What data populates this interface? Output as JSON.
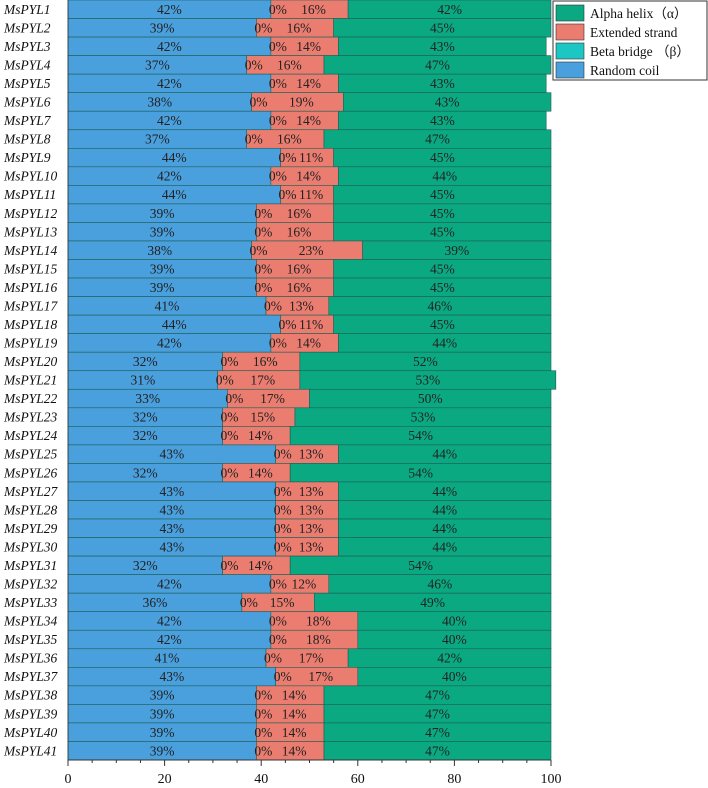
{
  "chart_data": {
    "type": "bar",
    "orientation": "horizontal",
    "stacked": true,
    "xlim": [
      0,
      100
    ],
    "xticks": [
      "0",
      "20",
      "40",
      "60",
      "80",
      "100"
    ],
    "legend_position": "top-right",
    "categories": [
      "MsPYL1",
      "MsPYL2",
      "MsPYL3",
      "MsPYL4",
      "MsPYL5",
      "MsPYL6",
      "MsPYL7",
      "MsPYL8",
      "MsPYL9",
      "MsPYL10",
      "MsPYL11",
      "MsPYL12",
      "MsPYL13",
      "MsPYL14",
      "MsPYL15",
      "MsPYL16",
      "MsPYL17",
      "MsPYL18",
      "MsPYL19",
      "MsPYL20",
      "MsPYL21",
      "MsPYL22",
      "MsPYL23",
      "MsPYL24",
      "MsPYL25",
      "MsPYL26",
      "MsPYL27",
      "MsPYL28",
      "MsPYL29",
      "MsPYL30",
      "MsPYL31",
      "MsPYL32",
      "MsPYL33",
      "MsPYL34",
      "MsPYL35",
      "MsPYL36",
      "MsPYL37",
      "MsPYL38",
      "MsPYL39",
      "MsPYL40",
      "MsPYL41"
    ],
    "series": [
      {
        "name": "Random coil",
        "color": "#4a9fdd",
        "values": [
          42,
          39,
          42,
          37,
          42,
          38,
          42,
          37,
          44,
          42,
          44,
          39,
          39,
          38,
          39,
          39,
          41,
          44,
          42,
          32,
          31,
          33,
          32,
          32,
          43,
          32,
          43,
          43,
          43,
          43,
          32,
          42,
          36,
          42,
          42,
          41,
          43,
          39,
          39,
          39,
          39
        ]
      },
      {
        "name": "Beta bridge （β）",
        "color": "#1cc6c2",
        "values": [
          0,
          0,
          0,
          0,
          0,
          0,
          0,
          0,
          0,
          0,
          0,
          0,
          0,
          0,
          0,
          0,
          0,
          0,
          0,
          0,
          0,
          0,
          0,
          0,
          0,
          0,
          0,
          0,
          0,
          0,
          0,
          0,
          0,
          0,
          0,
          0,
          0,
          0,
          0,
          0,
          0
        ]
      },
      {
        "name": "Extended strand",
        "color": "#ea7d70",
        "values": [
          16,
          16,
          14,
          16,
          14,
          19,
          14,
          16,
          11,
          14,
          11,
          16,
          16,
          23,
          16,
          16,
          13,
          11,
          14,
          16,
          17,
          17,
          15,
          14,
          13,
          14,
          13,
          13,
          13,
          13,
          14,
          12,
          15,
          18,
          18,
          17,
          17,
          14,
          14,
          14,
          14
        ]
      },
      {
        "name": "Alpha helix（α）",
        "color": "#0aa982",
        "values": [
          42,
          45,
          43,
          47,
          43,
          43,
          43,
          47,
          45,
          44,
          45,
          45,
          45,
          39,
          45,
          45,
          46,
          45,
          44,
          52,
          53,
          50,
          53,
          54,
          44,
          54,
          44,
          44,
          44,
          44,
          54,
          46,
          49,
          40,
          40,
          42,
          40,
          47,
          47,
          47,
          47
        ]
      }
    ],
    "legend_order": [
      "Alpha helix（α）",
      "Extended strand",
      "Beta bridge （β）",
      "Random coil"
    ],
    "value_suffix": "%"
  }
}
